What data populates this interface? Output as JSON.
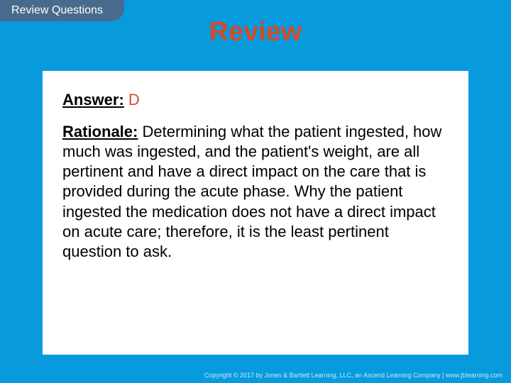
{
  "colors": {
    "background": "#079bde",
    "tab_background": "#4a6a8d",
    "tab_text": "#ffffff",
    "title_text": "#d54a28",
    "content_background": "#ffffff",
    "body_text": "#000000",
    "answer_value": "#d54a28",
    "footer_text": "#c7e9f8"
  },
  "typography": {
    "tab_fontsize": 16,
    "title_fontsize": 38,
    "body_fontsize": 22,
    "footer_fontsize": 9,
    "line_height": 1.28
  },
  "tab": {
    "label": "Review Questions"
  },
  "title": "Review",
  "answer": {
    "label": "Answer:",
    "value": "D"
  },
  "rationale": {
    "label": "Rationale:",
    "text": "Determining what the patient ingested, how much was ingested, and the patient's weight, are all pertinent and have a direct impact on the care that is provided during the acute phase. Why the patient ingested the medication does not have a direct impact on acute care; therefore, it is the least pertinent question to ask."
  },
  "footer": "Copyright © 2017 by Jones & Bartlett Learning, LLC, an Ascend Learning Company | www.jblearning.com"
}
